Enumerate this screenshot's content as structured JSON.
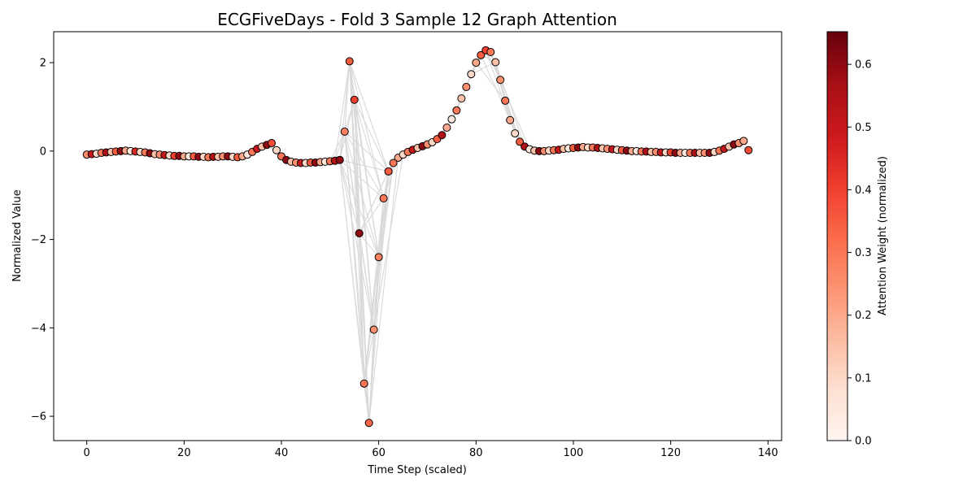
{
  "chart_data": {
    "type": "scatter",
    "title": "ECGFiveDays - Fold 3 Sample 12 Graph Attention",
    "xlabel": "Time Step (scaled)",
    "ylabel": "Normalized Value",
    "xlim": [
      -6.8,
      142.8
    ],
    "ylim": [
      -6.55,
      2.7
    ],
    "x_ticks": [
      0,
      20,
      40,
      60,
      80,
      100,
      120,
      140
    ],
    "y_ticks": [
      -6,
      -4,
      -2,
      0,
      2
    ],
    "grid": false,
    "colorbar": {
      "label": "Attention Weight (normalized)",
      "range": [
        0.0,
        0.652
      ],
      "ticks": [
        0.0,
        0.1,
        0.2,
        0.3,
        0.4,
        0.5,
        0.6
      ],
      "colormap": "Reds"
    },
    "edge_color": "#d9d9d9",
    "point_edge_color": "#000000",
    "series": [
      {
        "x": [
          0,
          1,
          2,
          3,
          4,
          5,
          6,
          7,
          8,
          9,
          10,
          11,
          12,
          13,
          14,
          15,
          16,
          17,
          18,
          19,
          20,
          21,
          22,
          23,
          24,
          25,
          26,
          27,
          28,
          29,
          30,
          31,
          32,
          33,
          34,
          35,
          36,
          37,
          38,
          39,
          40,
          41,
          42,
          43,
          44,
          45,
          46,
          47,
          48,
          49,
          50,
          51,
          52,
          53,
          54,
          55,
          56,
          57,
          58,
          59,
          60,
          61,
          62,
          63,
          64,
          65,
          66,
          67,
          68,
          69,
          70,
          71,
          72,
          73,
          74,
          75,
          76,
          77,
          78,
          79,
          80,
          81,
          82,
          83,
          84,
          85,
          86,
          87,
          88,
          89,
          90,
          91,
          92,
          93,
          94,
          95,
          96,
          97,
          98,
          99,
          100,
          101,
          102,
          103,
          104,
          105,
          106,
          107,
          108,
          109,
          110,
          111,
          112,
          113,
          114,
          115,
          116,
          117,
          118,
          119,
          120,
          121,
          122,
          123,
          124,
          125,
          126,
          127,
          128,
          129,
          130,
          131,
          132,
          133,
          134,
          135,
          136
        ],
        "y": [
          -0.08,
          -0.07,
          -0.06,
          -0.04,
          -0.03,
          -0.02,
          -0.01,
          0.0,
          0.01,
          0.0,
          -0.01,
          -0.02,
          -0.03,
          -0.05,
          -0.07,
          -0.08,
          -0.09,
          -0.1,
          -0.11,
          -0.11,
          -0.12,
          -0.12,
          -0.12,
          -0.13,
          -0.13,
          -0.14,
          -0.13,
          -0.13,
          -0.12,
          -0.12,
          -0.13,
          -0.14,
          -0.12,
          -0.08,
          -0.02,
          0.05,
          0.1,
          0.14,
          0.18,
          0.02,
          -0.12,
          -0.2,
          -0.24,
          -0.26,
          -0.27,
          -0.27,
          -0.26,
          -0.26,
          -0.25,
          -0.24,
          -0.23,
          -0.22,
          -0.2,
          0.44,
          2.03,
          1.16,
          -1.86,
          -5.26,
          -6.15,
          -4.04,
          -2.4,
          -1.07,
          -0.46,
          -0.27,
          -0.15,
          -0.08,
          -0.02,
          0.03,
          0.07,
          0.11,
          0.15,
          0.2,
          0.27,
          0.36,
          0.53,
          0.72,
          0.92,
          1.19,
          1.45,
          1.74,
          2.0,
          2.17,
          2.28,
          2.24,
          2.01,
          1.61,
          1.14,
          0.7,
          0.4,
          0.21,
          0.1,
          0.04,
          0.01,
          0.0,
          0.0,
          0.01,
          0.02,
          0.03,
          0.05,
          0.06,
          0.07,
          0.08,
          0.09,
          0.08,
          0.08,
          0.07,
          0.06,
          0.05,
          0.04,
          0.03,
          0.02,
          0.01,
          0.0,
          0.0,
          -0.01,
          -0.01,
          -0.02,
          -0.02,
          -0.03,
          -0.03,
          -0.03,
          -0.04,
          -0.04,
          -0.04,
          -0.04,
          -0.04,
          -0.04,
          -0.04,
          -0.04,
          -0.02,
          0.01,
          0.05,
          0.1,
          0.15,
          0.18,
          0.23,
          0.02
        ],
        "attention": [
          0.25,
          0.5,
          0.1,
          0.3,
          0.55,
          0.15,
          0.35,
          0.6,
          0.2,
          0.05,
          0.45,
          0.1,
          0.3,
          0.6,
          0.15,
          0.25,
          0.5,
          0.1,
          0.4,
          0.6,
          0.2,
          0.05,
          0.35,
          0.6,
          0.1,
          0.3,
          0.55,
          0.15,
          0.25,
          0.6,
          0.1,
          0.35,
          0.2,
          0.05,
          0.3,
          0.5,
          0.15,
          0.6,
          0.38,
          0.1,
          0.3,
          0.6,
          0.15,
          0.25,
          0.5,
          0.1,
          0.35,
          0.6,
          0.2,
          0.05,
          0.3,
          0.55,
          0.6,
          0.28,
          0.35,
          0.4,
          0.6,
          0.3,
          0.33,
          0.25,
          0.28,
          0.3,
          0.35,
          0.3,
          0.2,
          0.1,
          0.3,
          0.5,
          0.15,
          0.6,
          0.25,
          0.1,
          0.35,
          0.55,
          0.2,
          0.05,
          0.3,
          0.15,
          0.25,
          0.1,
          0.2,
          0.35,
          0.4,
          0.3,
          0.15,
          0.25,
          0.3,
          0.2,
          0.1,
          0.35,
          0.55,
          0.05,
          0.15,
          0.6,
          0.25,
          0.1,
          0.3,
          0.5,
          0.15,
          0.05,
          0.35,
          0.6,
          0.2,
          0.1,
          0.3,
          0.55,
          0.15,
          0.25,
          0.5,
          0.1,
          0.35,
          0.6,
          0.2,
          0.05,
          0.3,
          0.55,
          0.15,
          0.25,
          0.5,
          0.1,
          0.4,
          0.6,
          0.2,
          0.05,
          0.3,
          0.55,
          0.15,
          0.25,
          0.6,
          0.1,
          0.3,
          0.5,
          0.15,
          0.6,
          0.25,
          0.2,
          0.38
        ]
      }
    ]
  }
}
